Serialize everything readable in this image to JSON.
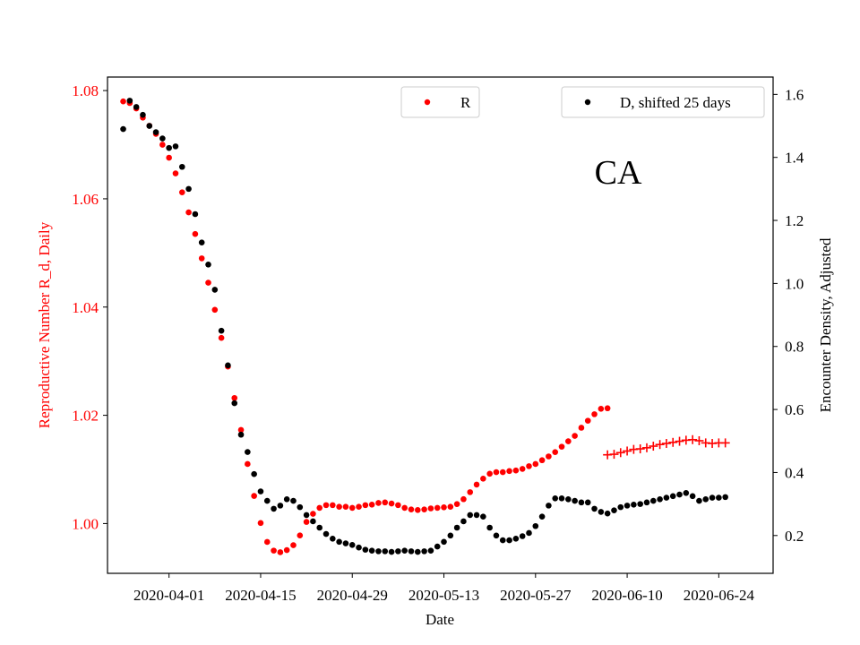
{
  "chart_data": {
    "type": "scatter",
    "title": "",
    "annotation": "CA",
    "xlabel": "Date",
    "ylabel_left": "Reproductive Number R_d, Daily",
    "ylabel_right": "Encounter Density, Adjusted",
    "x_tick_labels": [
      "2020-04-01",
      "2020-04-15",
      "2020-04-29",
      "2020-05-13",
      "2020-05-27",
      "2020-06-10",
      "2020-06-24"
    ],
    "y_left_ticks": [
      "1.00",
      "1.02",
      "1.04",
      "1.06",
      "1.08"
    ],
    "y_right_ticks": [
      "0.2",
      "0.4",
      "0.6",
      "0.8",
      "1.0",
      "1.2",
      "1.4",
      "1.6"
    ],
    "ylim_left": [
      0.9908,
      1.0825
    ],
    "ylim_right": [
      0.08,
      1.655
    ],
    "x_start_date": "2020-03-25",
    "xlim_days": [
      -2.4,
      99.3
    ],
    "grid": false,
    "legend": [
      {
        "label": "R",
        "color": "#ff0000",
        "marker": "dot",
        "position": "top-center"
      },
      {
        "label": "D, shifted 25 days",
        "color": "#000000",
        "marker": "dot",
        "position": "top-right"
      }
    ],
    "colors": {
      "R": "#ff0000",
      "R_forecast": "#ff0000",
      "D": "#000000"
    },
    "series": [
      {
        "name": "R",
        "axis": "left",
        "marker": "dot",
        "color": "#ff0000",
        "x": [
          "2020-03-25",
          "2020-03-26",
          "2020-03-27",
          "2020-03-28",
          "2020-03-29",
          "2020-03-30",
          "2020-03-31",
          "2020-04-01",
          "2020-04-02",
          "2020-04-03",
          "2020-04-04",
          "2020-04-05",
          "2020-04-06",
          "2020-04-07",
          "2020-04-08",
          "2020-04-09",
          "2020-04-10",
          "2020-04-11",
          "2020-04-12",
          "2020-04-13",
          "2020-04-14",
          "2020-04-15",
          "2020-04-16",
          "2020-04-17",
          "2020-04-18",
          "2020-04-19",
          "2020-04-20",
          "2020-04-21",
          "2020-04-22",
          "2020-04-23",
          "2020-04-24",
          "2020-04-25",
          "2020-04-26",
          "2020-04-27",
          "2020-04-28",
          "2020-04-29",
          "2020-04-30",
          "2020-05-01",
          "2020-05-02",
          "2020-05-03",
          "2020-05-04",
          "2020-05-05",
          "2020-05-06",
          "2020-05-07",
          "2020-05-08",
          "2020-05-09",
          "2020-05-10",
          "2020-05-11",
          "2020-05-12",
          "2020-05-13",
          "2020-05-14",
          "2020-05-15",
          "2020-05-16",
          "2020-05-17",
          "2020-05-18",
          "2020-05-19",
          "2020-05-20",
          "2020-05-21",
          "2020-05-22",
          "2020-05-23",
          "2020-05-24",
          "2020-05-25",
          "2020-05-26",
          "2020-05-27",
          "2020-05-28",
          "2020-05-29",
          "2020-05-30",
          "2020-05-31",
          "2020-06-01",
          "2020-06-02",
          "2020-06-03",
          "2020-06-04",
          "2020-06-05"
        ],
        "values": [
          1.078,
          1.0777,
          1.0767,
          1.075,
          1.0735,
          1.072,
          1.07,
          1.0676,
          1.0647,
          1.0612,
          1.0575,
          1.0535,
          1.049,
          1.0445,
          1.0395,
          1.0343,
          1.029,
          1.0232,
          1.0173,
          1.011,
          1.0051,
          1.0001,
          0.9966,
          0.995,
          0.9947,
          0.9951,
          0.996,
          0.9978,
          1.0003,
          1.0018,
          1.0029,
          1.0034,
          1.0034,
          1.0031,
          1.0031,
          1.0029,
          1.0031,
          1.0034,
          1.0035,
          1.0038,
          1.0039,
          1.0037,
          1.0034,
          1.0029,
          1.0026,
          1.0025,
          1.0026,
          1.0028,
          1.0029,
          1.003,
          1.0031,
          1.0036,
          1.0045,
          1.0058,
          1.0072,
          1.0083,
          1.0092,
          1.0095,
          1.0095,
          1.0097,
          1.0098,
          1.0101,
          1.0106,
          1.011,
          1.0117,
          1.0124,
          1.0132,
          1.0142,
          1.0152,
          1.0162,
          1.0177,
          1.019,
          1.0202
        ]
      },
      {
        "name": "R (tail)",
        "axis": "left",
        "marker": "dot",
        "color": "#ff0000",
        "x": [
          "2020-06-06",
          "2020-06-07"
        ],
        "values": [
          1.0212,
          1.0213
        ]
      },
      {
        "name": "R forecast",
        "axis": "left",
        "marker": "plus",
        "color": "#ff0000",
        "x": [
          "2020-06-07",
          "2020-06-08",
          "2020-06-09",
          "2020-06-10",
          "2020-06-11",
          "2020-06-12",
          "2020-06-13",
          "2020-06-14",
          "2020-06-15",
          "2020-06-16",
          "2020-06-17",
          "2020-06-18",
          "2020-06-19",
          "2020-06-20",
          "2020-06-21",
          "2020-06-22",
          "2020-06-23",
          "2020-06-24",
          "2020-06-25"
        ],
        "values": [
          1.0127,
          1.0128,
          1.0131,
          1.0134,
          1.0137,
          1.0138,
          1.014,
          1.0143,
          1.0146,
          1.0148,
          1.015,
          1.0152,
          1.0154,
          1.0155,
          1.0153,
          1.0149,
          1.0148,
          1.0149,
          1.0149
        ]
      },
      {
        "name": "D, shifted 25 days",
        "axis": "right",
        "marker": "dot",
        "color": "#000000",
        "x": [
          "2020-03-25",
          "2020-03-26",
          "2020-03-27",
          "2020-03-28",
          "2020-03-29",
          "2020-03-30",
          "2020-03-31",
          "2020-04-01",
          "2020-04-02",
          "2020-04-03",
          "2020-04-04",
          "2020-04-05",
          "2020-04-06",
          "2020-04-07",
          "2020-04-08",
          "2020-04-09",
          "2020-04-10",
          "2020-04-11",
          "2020-04-12",
          "2020-04-13",
          "2020-04-14",
          "2020-04-15",
          "2020-04-16",
          "2020-04-17",
          "2020-04-18",
          "2020-04-19",
          "2020-04-20",
          "2020-04-21",
          "2020-04-22",
          "2020-04-23",
          "2020-04-24",
          "2020-04-25",
          "2020-04-26",
          "2020-04-27",
          "2020-04-28",
          "2020-04-29",
          "2020-04-30",
          "2020-05-01",
          "2020-05-02",
          "2020-05-03",
          "2020-05-04",
          "2020-05-05",
          "2020-05-06",
          "2020-05-07",
          "2020-05-08",
          "2020-05-09",
          "2020-05-10",
          "2020-05-11",
          "2020-05-12",
          "2020-05-13",
          "2020-05-14",
          "2020-05-15",
          "2020-05-16",
          "2020-05-17",
          "2020-05-18",
          "2020-05-19",
          "2020-05-20",
          "2020-05-21",
          "2020-05-22",
          "2020-05-23",
          "2020-05-24",
          "2020-05-25",
          "2020-05-26",
          "2020-05-27",
          "2020-05-28",
          "2020-05-29",
          "2020-05-30",
          "2020-05-31",
          "2020-06-01",
          "2020-06-02",
          "2020-06-03",
          "2020-06-04",
          "2020-06-05",
          "2020-06-06",
          "2020-06-07",
          "2020-06-08",
          "2020-06-09",
          "2020-06-10",
          "2020-06-11",
          "2020-06-12",
          "2020-06-13",
          "2020-06-14",
          "2020-06-15",
          "2020-06-16",
          "2020-06-17",
          "2020-06-18",
          "2020-06-19",
          "2020-06-20",
          "2020-06-21",
          "2020-06-22",
          "2020-06-23",
          "2020-06-24",
          "2020-06-25"
        ],
        "values": [
          1.49,
          1.58,
          1.56,
          1.535,
          1.5,
          1.48,
          1.46,
          1.43,
          1.435,
          1.37,
          1.3,
          1.22,
          1.13,
          1.06,
          0.98,
          0.85,
          0.74,
          0.62,
          0.52,
          0.465,
          0.395,
          0.34,
          0.31,
          0.285,
          0.295,
          0.315,
          0.31,
          0.29,
          0.265,
          0.245,
          0.225,
          0.205,
          0.19,
          0.18,
          0.175,
          0.17,
          0.162,
          0.155,
          0.152,
          0.15,
          0.15,
          0.148,
          0.15,
          0.152,
          0.15,
          0.148,
          0.15,
          0.152,
          0.165,
          0.18,
          0.2,
          0.225,
          0.245,
          0.265,
          0.265,
          0.26,
          0.225,
          0.2,
          0.185,
          0.185,
          0.19,
          0.198,
          0.208,
          0.23,
          0.26,
          0.295,
          0.318,
          0.318,
          0.315,
          0.31,
          0.305,
          0.305,
          0.285,
          0.275,
          0.27,
          0.28,
          0.29,
          0.295,
          0.298,
          0.3,
          0.305,
          0.31,
          0.315,
          0.32,
          0.325,
          0.33,
          0.335,
          0.325,
          0.31,
          0.315,
          0.32,
          0.32,
          0.322
        ]
      }
    ]
  }
}
